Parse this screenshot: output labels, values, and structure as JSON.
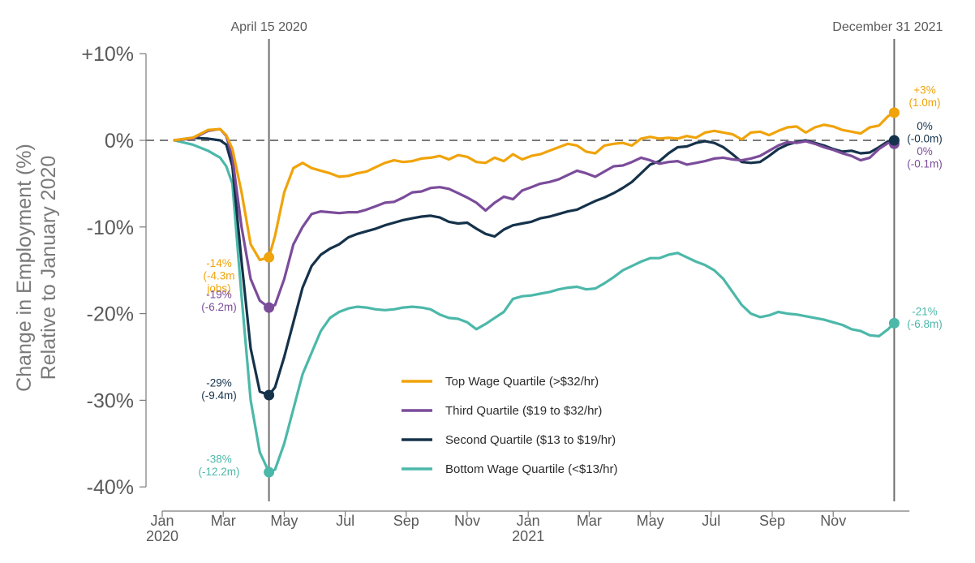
{
  "chart_data": {
    "type": "line",
    "ylabel_lines": [
      "Change in Employment (%)",
      "Relative to January 2020"
    ],
    "ylim": [
      -42,
      12
    ],
    "yticks": [
      {
        "value": 10,
        "label": "+10%"
      },
      {
        "value": 0,
        "label": "0%"
      },
      {
        "value": -10,
        "label": "-10%"
      },
      {
        "value": -20,
        "label": "-20%"
      },
      {
        "value": -30,
        "label": "-30%"
      },
      {
        "value": -40,
        "label": "-40%"
      }
    ],
    "xlim": [
      0,
      24.0
    ],
    "xticks": [
      {
        "value": 0,
        "label": "Jan",
        "sublabel": "2020"
      },
      {
        "value": 2,
        "label": "Mar",
        "sublabel": ""
      },
      {
        "value": 4,
        "label": "May",
        "sublabel": ""
      },
      {
        "value": 6,
        "label": "Jul",
        "sublabel": ""
      },
      {
        "value": 8,
        "label": "Sep",
        "sublabel": ""
      },
      {
        "value": 10,
        "label": "Nov",
        "sublabel": ""
      },
      {
        "value": 12,
        "label": "Jan",
        "sublabel": "2021"
      },
      {
        "value": 14,
        "label": "Mar",
        "sublabel": ""
      },
      {
        "value": 16,
        "label": "May",
        "sublabel": ""
      },
      {
        "value": 18,
        "label": "Jul",
        "sublabel": ""
      },
      {
        "value": 20,
        "label": "Sep",
        "sublabel": ""
      },
      {
        "value": 22,
        "label": "Nov",
        "sublabel": ""
      }
    ],
    "reference_lines": [
      {
        "x": 3.5,
        "label": "April 15 2020"
      },
      {
        "x": 24.0,
        "label": "December 31 2021"
      }
    ],
    "zero_line": 0,
    "series": [
      {
        "name": "Top Wage Quartile (>$32/hr)",
        "color": "#f0a30a",
        "x": [
          0.4,
          1.0,
          1.5,
          1.9,
          2.1,
          2.3,
          2.6,
          2.9,
          3.2,
          3.5,
          3.7,
          4.0,
          4.3,
          4.6,
          4.9,
          5.2,
          5.5,
          5.8,
          6.1,
          6.4,
          6.7,
          7.0,
          7.3,
          7.6,
          7.9,
          8.2,
          8.5,
          8.8,
          9.1,
          9.4,
          9.7,
          10.0,
          10.3,
          10.6,
          10.9,
          11.2,
          11.5,
          11.8,
          12.1,
          12.4,
          12.7,
          13.0,
          13.3,
          13.6,
          13.9,
          14.2,
          14.5,
          14.8,
          15.1,
          15.4,
          15.7,
          16.0,
          16.3,
          16.6,
          16.9,
          17.2,
          17.5,
          17.8,
          18.1,
          18.4,
          18.7,
          19.0,
          19.3,
          19.6,
          19.9,
          20.2,
          20.5,
          20.8,
          21.1,
          21.4,
          21.7,
          22.0,
          22.3,
          22.6,
          22.9,
          23.2,
          23.5,
          23.8,
          24.0
        ],
        "y": [
          0,
          0.3,
          1.2,
          1.3,
          0.6,
          -1,
          -6,
          -12,
          -13.8,
          -13.5,
          -11,
          -6,
          -3.2,
          -2.6,
          -3.2,
          -3.5,
          -3.8,
          -4.2,
          -4.1,
          -3.8,
          -3.6,
          -3.1,
          -2.6,
          -2.3,
          -2.5,
          -2.4,
          -2.1,
          -2.0,
          -1.8,
          -2.2,
          -1.7,
          -1.9,
          -2.5,
          -2.6,
          -2.0,
          -2.4,
          -1.6,
          -2.2,
          -1.8,
          -1.6,
          -1.2,
          -0.8,
          -0.4,
          -0.6,
          -1.3,
          -1.5,
          -0.6,
          -0.4,
          -0.3,
          -0.6,
          0.2,
          0.4,
          0.2,
          0.3,
          0.2,
          0.5,
          0.3,
          0.9,
          1.1,
          0.9,
          0.7,
          0.1,
          0.9,
          1.0,
          0.6,
          1.1,
          1.5,
          1.6,
          0.9,
          1.5,
          1.8,
          1.6,
          1.2,
          1.0,
          0.8,
          1.5,
          1.7,
          2.8,
          3.2
        ]
      },
      {
        "name": "Third Quartile ($19 to $32/hr)",
        "color": "#7b4c9a",
        "x": [
          0.4,
          1.0,
          1.5,
          1.9,
          2.1,
          2.3,
          2.6,
          2.9,
          3.2,
          3.5,
          3.7,
          4.0,
          4.3,
          4.6,
          4.9,
          5.2,
          5.5,
          5.8,
          6.1,
          6.4,
          6.7,
          7.0,
          7.3,
          7.6,
          7.9,
          8.2,
          8.5,
          8.8,
          9.1,
          9.4,
          9.7,
          10.0,
          10.3,
          10.6,
          10.9,
          11.2,
          11.5,
          11.8,
          12.1,
          12.4,
          12.7,
          13.0,
          13.3,
          13.6,
          13.9,
          14.2,
          14.5,
          14.8,
          15.1,
          15.4,
          15.7,
          16.0,
          16.3,
          16.6,
          16.9,
          17.2,
          17.5,
          17.8,
          18.1,
          18.4,
          18.7,
          19.0,
          19.3,
          19.6,
          19.9,
          20.2,
          20.5,
          20.8,
          21.1,
          21.4,
          21.7,
          22.0,
          22.3,
          22.6,
          22.9,
          23.2,
          23.5,
          23.8,
          24.0
        ],
        "y": [
          0,
          0.2,
          1.1,
          1.3,
          0.5,
          -2,
          -10,
          -16,
          -18.5,
          -19.3,
          -19,
          -16,
          -12,
          -10,
          -8.5,
          -8.2,
          -8.3,
          -8.4,
          -8.3,
          -8.3,
          -8.0,
          -7.6,
          -7.2,
          -7.1,
          -6.6,
          -6.0,
          -5.9,
          -5.5,
          -5.4,
          -5.6,
          -6.1,
          -6.6,
          -7.2,
          -8.1,
          -7.2,
          -6.5,
          -6.8,
          -5.8,
          -5.4,
          -5.0,
          -4.8,
          -4.5,
          -4.0,
          -3.5,
          -3.8,
          -4.2,
          -3.6,
          -3.0,
          -2.9,
          -2.5,
          -2.0,
          -2.3,
          -2.7,
          -2.5,
          -2.4,
          -2.8,
          -2.6,
          -2.4,
          -2.1,
          -2.0,
          -2.2,
          -2.3,
          -2.1,
          -1.8,
          -1.2,
          -0.6,
          -0.2,
          -0.3,
          -0.1,
          -0.4,
          -0.8,
          -1.1,
          -1.5,
          -1.8,
          -2.3,
          -2.0,
          -1.0,
          -0.3,
          -0.4
        ]
      },
      {
        "name": "Second Quartile ($13 to $19/hr)",
        "color": "#15324b",
        "x": [
          0.4,
          1.0,
          1.5,
          1.9,
          2.1,
          2.3,
          2.6,
          2.9,
          3.2,
          3.5,
          3.7,
          4.0,
          4.3,
          4.6,
          4.9,
          5.2,
          5.5,
          5.8,
          6.1,
          6.4,
          6.7,
          7.0,
          7.3,
          7.6,
          7.9,
          8.2,
          8.5,
          8.8,
          9.1,
          9.4,
          9.7,
          10.0,
          10.3,
          10.6,
          10.9,
          11.2,
          11.5,
          11.8,
          12.1,
          12.4,
          12.7,
          13.0,
          13.3,
          13.6,
          13.9,
          14.2,
          14.5,
          14.8,
          15.1,
          15.4,
          15.7,
          16.0,
          16.3,
          16.6,
          16.9,
          17.2,
          17.5,
          17.8,
          18.1,
          18.4,
          18.7,
          19.0,
          19.3,
          19.6,
          19.9,
          20.2,
          20.5,
          20.8,
          21.1,
          21.4,
          21.7,
          22.0,
          22.3,
          22.6,
          22.9,
          23.2,
          23.5,
          23.8,
          24.0
        ],
        "y": [
          0,
          0.3,
          0.2,
          0,
          -0.5,
          -3,
          -14,
          -24,
          -29,
          -29.4,
          -28.5,
          -25,
          -21,
          -17,
          -14.5,
          -13.2,
          -12.5,
          -12.0,
          -11.2,
          -10.8,
          -10.5,
          -10.2,
          -9.8,
          -9.5,
          -9.2,
          -9.0,
          -8.8,
          -8.7,
          -8.9,
          -9.4,
          -9.6,
          -9.5,
          -10.2,
          -10.8,
          -11.1,
          -10.3,
          -9.8,
          -9.6,
          -9.4,
          -9.0,
          -8.8,
          -8.5,
          -8.2,
          -8.0,
          -7.5,
          -7.0,
          -6.6,
          -6.1,
          -5.5,
          -4.8,
          -3.8,
          -2.8,
          -2.4,
          -1.5,
          -0.8,
          -0.7,
          -0.3,
          -0.1,
          -0.3,
          -0.8,
          -1.6,
          -2.5,
          -2.6,
          -2.5,
          -1.8,
          -1.0,
          -0.5,
          -0.2,
          0,
          -0.3,
          -0.6,
          -1.0,
          -1.3,
          -1.2,
          -1.5,
          -1.4,
          -0.8,
          -0.1,
          0
        ]
      },
      {
        "name": "Bottom Wage Quartile (<$13/hr)",
        "color": "#4cb8a9",
        "x": [
          0.4,
          1.0,
          1.5,
          1.9,
          2.1,
          2.3,
          2.6,
          2.9,
          3.2,
          3.5,
          3.7,
          4.0,
          4.3,
          4.6,
          4.9,
          5.2,
          5.5,
          5.8,
          6.1,
          6.4,
          6.7,
          7.0,
          7.3,
          7.6,
          7.9,
          8.2,
          8.5,
          8.8,
          9.1,
          9.4,
          9.7,
          10.0,
          10.3,
          10.6,
          10.9,
          11.2,
          11.5,
          11.8,
          12.1,
          12.4,
          12.7,
          13.0,
          13.3,
          13.6,
          13.9,
          14.2,
          14.5,
          14.8,
          15.1,
          15.4,
          15.7,
          16.0,
          16.3,
          16.6,
          16.9,
          17.2,
          17.5,
          17.8,
          18.1,
          18.4,
          18.7,
          19.0,
          19.3,
          19.6,
          19.9,
          20.2,
          20.5,
          20.8,
          21.1,
          21.4,
          21.7,
          22.0,
          22.3,
          22.6,
          22.9,
          23.2,
          23.5,
          23.8,
          24.0
        ],
        "y": [
          0,
          -0.5,
          -1.2,
          -2,
          -3,
          -5,
          -18,
          -30,
          -36,
          -38.3,
          -38,
          -35,
          -31,
          -27,
          -24.5,
          -22,
          -20.5,
          -19.8,
          -19.4,
          -19.2,
          -19.3,
          -19.5,
          -19.6,
          -19.5,
          -19.3,
          -19.2,
          -19.3,
          -19.5,
          -20.1,
          -20.5,
          -20.6,
          -21.0,
          -21.8,
          -21.2,
          -20.5,
          -19.8,
          -18.3,
          -18.0,
          -17.9,
          -17.7,
          -17.5,
          -17.2,
          -17.0,
          -16.9,
          -17.2,
          -17.1,
          -16.5,
          -15.8,
          -15.0,
          -14.5,
          -14.0,
          -13.6,
          -13.6,
          -13.2,
          -13.0,
          -13.5,
          -14.0,
          -14.4,
          -15.0,
          -16.0,
          -17.5,
          -19.0,
          -20.0,
          -20.4,
          -20.2,
          -19.8,
          -20.0,
          -20.1,
          -20.3,
          -20.5,
          -20.7,
          -21.0,
          -21.3,
          -21.8,
          -22.0,
          -22.5,
          -22.6,
          -21.8,
          -21.1
        ]
      }
    ],
    "markers": [
      {
        "series": 0,
        "x": 3.5,
        "y": -13.5
      },
      {
        "series": 1,
        "x": 3.5,
        "y": -19.3
      },
      {
        "series": 2,
        "x": 3.5,
        "y": -29.4
      },
      {
        "series": 3,
        "x": 3.5,
        "y": -38.3
      },
      {
        "series": 0,
        "x": 24.0,
        "y": 3.2
      },
      {
        "series": 1,
        "x": 24.0,
        "y": -0.4
      },
      {
        "series": 2,
        "x": 24.0,
        "y": 0
      },
      {
        "series": 3,
        "x": 24.0,
        "y": -21.1
      }
    ],
    "annotations": [
      {
        "series": 0,
        "side": "left",
        "lines": [
          "-14%",
          "(-4.3m",
          "jobs)"
        ],
        "y": -14.6
      },
      {
        "series": 1,
        "side": "left",
        "lines": [
          "-19%",
          "(-6.2m)"
        ],
        "y": -18.2
      },
      {
        "series": 2,
        "side": "left",
        "lines": [
          "-29%",
          "(-9.4m)"
        ],
        "y": -28.4
      },
      {
        "series": 3,
        "side": "left",
        "lines": [
          "-38%",
          "(-12.2m)"
        ],
        "y": -37.2
      },
      {
        "series": 0,
        "side": "right",
        "lines": [
          "+3%",
          "(1.0m)"
        ],
        "y": 5.4
      },
      {
        "series": 2,
        "side": "right",
        "lines": [
          "0%",
          "(-0.0m)"
        ],
        "y": 1.2
      },
      {
        "series": 1,
        "side": "right",
        "lines": [
          "0%",
          "(-0.1m)"
        ],
        "y": -1.7
      },
      {
        "series": 3,
        "side": "right",
        "lines": [
          "-21%",
          "(-6.8m)"
        ],
        "y": -20.2
      }
    ]
  }
}
